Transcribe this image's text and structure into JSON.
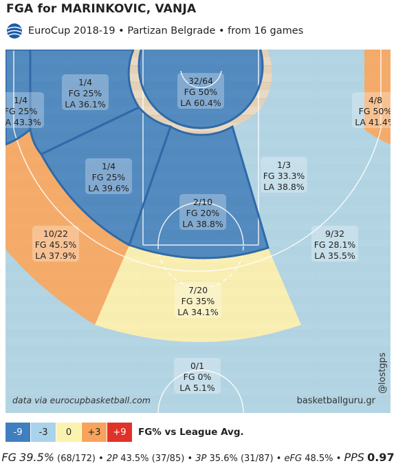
{
  "title": "FGA for MARINKOVIC, VANJA",
  "subtitle": "EuroCup 2018-19 • Partizan Belgrade • from  16 games",
  "source_text": "data via eurocupbasketball.com",
  "brand_text": "basketballguru.gr",
  "watermark_text": "@lostgps",
  "legend": {
    "items": [
      {
        "label": "-9",
        "color": "#3f7fbf",
        "text_color": "#ffffff"
      },
      {
        "label": "-3",
        "color": "#a9d3ea",
        "text_color": "#222222"
      },
      {
        "label": "0",
        "color": "#fbf2b0",
        "text_color": "#222222"
      },
      {
        "label": "+3",
        "color": "#f7a35c",
        "text_color": "#222222"
      },
      {
        "label": "+9",
        "color": "#e03228",
        "text_color": "#ffffff"
      }
    ],
    "label": "FG% vs League Avg."
  },
  "stats": {
    "fg_label": "FG",
    "fg_value": "39.5%",
    "fg_detail": "(68/172)",
    "two_label": "2P",
    "two_value": "43.5%",
    "two_detail": "(37/85)",
    "three_label": "3P",
    "three_value": "35.6%",
    "three_detail": "(31/87)",
    "efg_label": "eFG",
    "efg_value": "48.5%",
    "pps_label": "PPS",
    "pps_value": "0.97"
  },
  "chart_data": {
    "type": "heatmap",
    "zones": [
      {
        "id": "left-corner-three",
        "made_attempts": "1/4",
        "fg": "FG 25%",
        "la": "LA 43.3%",
        "color": "#3f7fbf"
      },
      {
        "id": "left-mid-baseline",
        "made_attempts": "1/4",
        "fg": "FG 25%",
        "la": "LA 36.1%",
        "color": "#3f7fbf"
      },
      {
        "id": "restricted-area",
        "made_attempts": "32/64",
        "fg": "FG 50%",
        "la": "LA 60.4%",
        "color": "#3f7fbf"
      },
      {
        "id": "right-mid-baseline",
        "made_attempts": "",
        "fg": "",
        "la": "",
        "color": "#a9d3ea"
      },
      {
        "id": "right-corner-three",
        "made_attempts": "4/8",
        "fg": "FG 50%",
        "la": "LA 41.4%",
        "color": "#f7a35c"
      },
      {
        "id": "left-mid-wing",
        "made_attempts": "1/4",
        "fg": "FG 25%",
        "la": "LA 39.6%",
        "color": "#3f7fbf"
      },
      {
        "id": "paint-mid",
        "made_attempts": "2/10",
        "fg": "FG 20%",
        "la": "LA 38.8%",
        "color": "#3f7fbf"
      },
      {
        "id": "right-mid-wing",
        "made_attempts": "1/3",
        "fg": "FG 33.3%",
        "la": "LA 38.8%",
        "color": "#a9d3ea"
      },
      {
        "id": "left-wing-three",
        "made_attempts": "10/22",
        "fg": "FG 45.5%",
        "la": "LA 37.9%",
        "color": "#f7a35c"
      },
      {
        "id": "top-three",
        "made_attempts": "7/20",
        "fg": "FG 35%",
        "la": "LA 34.1%",
        "color": "#fbf2b0"
      },
      {
        "id": "right-wing-three",
        "made_attempts": "9/32",
        "fg": "FG 28.1%",
        "la": "LA 35.5%",
        "color": "#a9d3ea"
      },
      {
        "id": "backcourt",
        "made_attempts": "0/1",
        "fg": "FG 0%",
        "la": "LA 5.1%",
        "color": "#a9d3ea"
      }
    ]
  }
}
